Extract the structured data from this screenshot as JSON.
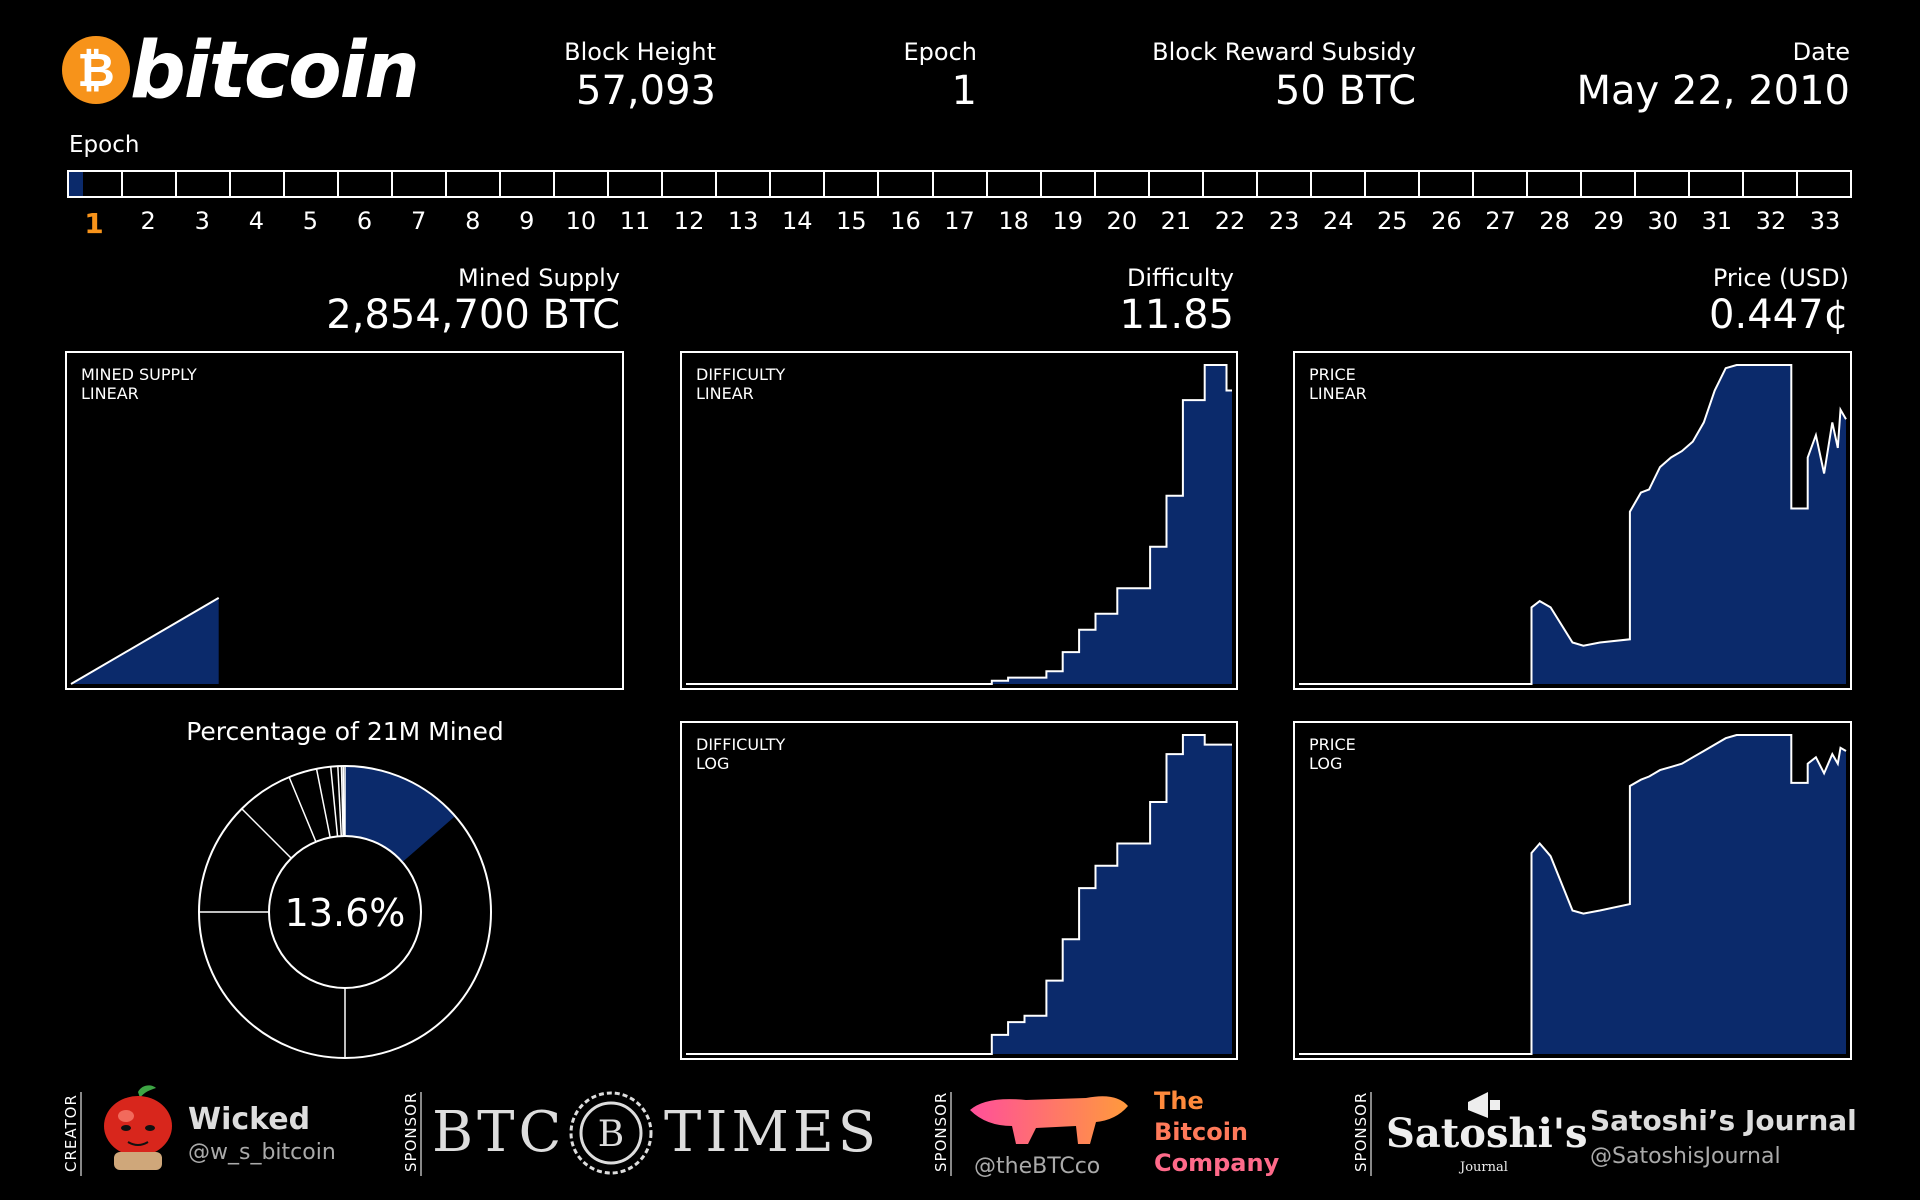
{
  "header": {
    "logo_symbol": "₿",
    "logo_text": "bitcoin",
    "block_height_label": "Block Height",
    "block_height_value": "57,093",
    "epoch_label": "Epoch",
    "epoch_value": "1",
    "subsidy_label": "Block Reward Subsidy",
    "subsidy_value": "50 BTC",
    "date_label": "Date",
    "date_value": "May 22, 2010"
  },
  "epoch_bar": {
    "title": "Epoch",
    "epochs": [
      "1",
      "2",
      "3",
      "4",
      "5",
      "6",
      "7",
      "8",
      "9",
      "10",
      "11",
      "12",
      "13",
      "14",
      "15",
      "16",
      "17",
      "18",
      "19",
      "20",
      "21",
      "22",
      "23",
      "24",
      "25",
      "26",
      "27",
      "28",
      "29",
      "30",
      "31",
      "32",
      "33"
    ],
    "active_index": 0,
    "progress_in_current_epoch": 0.27
  },
  "metrics": {
    "mined_supply_label": "Mined Supply",
    "mined_supply_value": "2,854,700 BTC",
    "difficulty_label": "Difficulty",
    "difficulty_value": "11.85",
    "price_label": "Price (USD)",
    "price_value": "0.447¢"
  },
  "colors": {
    "accent": "#f7931a",
    "fill": "#0b2a6b",
    "line": "#ffffff"
  },
  "chart_data": [
    {
      "id": "mined-supply-linear",
      "type": "area",
      "label_line1": "MINED SUPPLY",
      "label_line2": "LINEAR",
      "x": [
        0,
        0.27
      ],
      "y": [
        0,
        0.27
      ]
    },
    {
      "id": "difficulty-linear",
      "type": "area",
      "label_line1": "DIFFICULTY",
      "label_line2": "LINEAR",
      "x": [
        0,
        0.56,
        0.56,
        0.59,
        0.59,
        0.66,
        0.66,
        0.69,
        0.69,
        0.72,
        0.72,
        0.75,
        0.75,
        0.79,
        0.79,
        0.85,
        0.85,
        0.88,
        0.88,
        0.91,
        0.91,
        0.95,
        0.95,
        0.99,
        0.99,
        1.0
      ],
      "y": [
        0,
        0,
        0.01,
        0.01,
        0.02,
        0.02,
        0.04,
        0.04,
        0.1,
        0.1,
        0.17,
        0.17,
        0.22,
        0.22,
        0.3,
        0.3,
        0.43,
        0.43,
        0.59,
        0.59,
        0.89,
        0.89,
        1.0,
        1.0,
        0.92,
        0.92
      ]
    },
    {
      "id": "price-linear",
      "type": "area",
      "label_line1": "PRICE",
      "label_line2": "LINEAR",
      "x": [
        0,
        0.425,
        0.425,
        0.44,
        0.45,
        0.46,
        0.5,
        0.52,
        0.55,
        0.605,
        0.605,
        0.625,
        0.64,
        0.66,
        0.68,
        0.7,
        0.72,
        0.74,
        0.76,
        0.78,
        0.8,
        0.82,
        0.845,
        0.845,
        0.9,
        0.9,
        0.93,
        0.93,
        0.945,
        0.96,
        0.975,
        0.985,
        0.99,
        1.0
      ],
      "y": [
        0,
        0,
        0.24,
        0.26,
        0.25,
        0.24,
        0.13,
        0.12,
        0.13,
        0.14,
        0.54,
        0.6,
        0.61,
        0.68,
        0.71,
        0.73,
        0.76,
        0.82,
        0.92,
        0.99,
        1.0,
        1.0,
        1.0,
        1.0,
        1.0,
        0.55,
        0.55,
        0.71,
        0.78,
        0.66,
        0.82,
        0.74,
        0.86,
        0.83
      ]
    },
    {
      "id": "difficulty-log",
      "type": "area",
      "label_line1": "DIFFICULTY",
      "label_line2": "LOG",
      "x": [
        0,
        0.56,
        0.56,
        0.59,
        0.59,
        0.62,
        0.62,
        0.66,
        0.66,
        0.69,
        0.69,
        0.72,
        0.72,
        0.75,
        0.75,
        0.79,
        0.79,
        0.85,
        0.85,
        0.88,
        0.88,
        0.91,
        0.91,
        0.95,
        0.95,
        0.99,
        0.99,
        1.0
      ],
      "y": [
        0,
        0,
        0.06,
        0.06,
        0.1,
        0.1,
        0.12,
        0.12,
        0.23,
        0.23,
        0.36,
        0.36,
        0.52,
        0.52,
        0.59,
        0.59,
        0.66,
        0.66,
        0.79,
        0.79,
        0.94,
        0.94,
        1.0,
        1.0,
        0.97,
        0.97,
        0.97,
        0.97
      ]
    },
    {
      "id": "price-log",
      "type": "area",
      "label_line1": "PRICE",
      "label_line2": "LOG",
      "x": [
        0,
        0.425,
        0.425,
        0.44,
        0.45,
        0.46,
        0.5,
        0.52,
        0.55,
        0.605,
        0.605,
        0.625,
        0.64,
        0.66,
        0.68,
        0.7,
        0.72,
        0.74,
        0.76,
        0.78,
        0.8,
        0.845,
        0.9,
        0.9,
        0.93,
        0.93,
        0.945,
        0.96,
        0.975,
        0.985,
        0.99,
        1.0
      ],
      "y": [
        0,
        0,
        0.63,
        0.66,
        0.64,
        0.62,
        0.45,
        0.44,
        0.45,
        0.47,
        0.84,
        0.86,
        0.87,
        0.89,
        0.9,
        0.91,
        0.93,
        0.95,
        0.97,
        0.99,
        1.0,
        1.0,
        1.0,
        0.85,
        0.85,
        0.91,
        0.93,
        0.88,
        0.94,
        0.91,
        0.96,
        0.95
      ]
    },
    {
      "id": "percentage-mined",
      "type": "pie",
      "title": "Percentage of 21M Mined",
      "center_label": "13.6%",
      "mined_fraction": 0.136,
      "epoch_boundaries": [
        0.5,
        0.75,
        0.875,
        0.9375,
        0.96875,
        0.984375,
        0.9921875,
        0.99609375,
        0.998046875
      ]
    }
  ],
  "footer": {
    "creator_tag": "CREATOR",
    "creator_name": "Wicked",
    "creator_handle": "@w_s_bitcoin",
    "sponsor_tag": "SPONSOR",
    "btc_times_left": "BTC",
    "btc_times_emblem": "B",
    "btc_times_right": "TIMES",
    "btcco_handle": "@theBTCco",
    "btcco_line1": "The",
    "btcco_line2": "Bitcoin",
    "btcco_line3": "Company",
    "satoshi_logo": "Satoshi's",
    "satoshi_logo_sub": "Journal",
    "satoshi_name": "Satoshi’s Journal",
    "satoshi_handle": "@SatoshisJournal"
  }
}
